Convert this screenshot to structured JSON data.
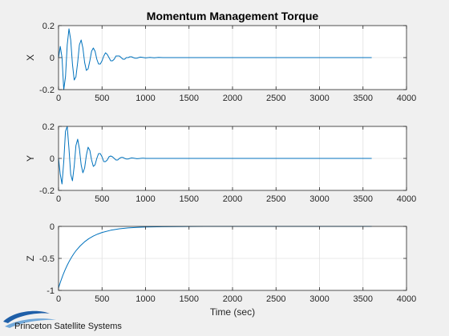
{
  "title": "Momentum Management Torque",
  "xlabel": "Time (sec)",
  "logo_text": "Princeton Satellite Systems",
  "colors": {
    "line": "#0072bd",
    "grid": "#e1e1e1",
    "axes_bg": "#ffffff",
    "figure_bg": "#f0f0f0"
  },
  "chart_data": [
    {
      "type": "line",
      "ylabel": "X",
      "xlim": [
        0,
        4000
      ],
      "ylim": [
        -0.2,
        0.2
      ],
      "xticks": [
        0,
        500,
        1000,
        1500,
        2000,
        2500,
        3000,
        3500,
        4000
      ],
      "yticks": [
        -0.2,
        0,
        0.2
      ],
      "ytick_labels": [
        "-0.2",
        "0",
        "0.2"
      ],
      "grid": true,
      "series": [
        {
          "x": [
            0,
            20,
            40,
            60,
            80,
            100,
            120,
            140,
            160,
            180,
            200,
            220,
            240,
            260,
            280,
            300,
            320,
            340,
            360,
            380,
            400,
            420,
            440,
            460,
            480,
            500,
            520,
            540,
            560,
            580,
            600,
            620,
            640,
            660,
            680,
            700,
            720,
            740,
            760,
            780,
            800,
            820,
            840,
            860,
            880,
            900,
            920,
            940,
            960,
            980,
            1000,
            1050,
            1100,
            1150,
            1200,
            1250,
            1300,
            1400,
            1600,
            2000,
            2500,
            3000,
            3600
          ],
          "y": [
            0.0,
            0.07,
            0.0,
            -0.2,
            -0.12,
            0.08,
            0.18,
            0.11,
            -0.04,
            -0.14,
            -0.12,
            -0.03,
            0.08,
            0.11,
            0.06,
            -0.03,
            -0.08,
            -0.07,
            -0.02,
            0.04,
            0.06,
            0.04,
            -0.01,
            -0.04,
            -0.04,
            -0.02,
            0.01,
            0.03,
            0.02,
            0.0,
            -0.02,
            -0.02,
            -0.01,
            0.01,
            0.01,
            0.01,
            0.0,
            -0.01,
            -0.01,
            0.0,
            0.0,
            0.005,
            0.005,
            0.0,
            -0.004,
            -0.004,
            0.0,
            0.003,
            0.002,
            0.0,
            -0.002,
            0.001,
            -0.001,
            0.001,
            0.0,
            0.0,
            0.0,
            0.0,
            0.0,
            0.0,
            0.0,
            0.0,
            0.0
          ]
        }
      ]
    },
    {
      "type": "line",
      "ylabel": "Y",
      "xlim": [
        0,
        4000
      ],
      "ylim": [
        -0.2,
        0.2
      ],
      "xticks": [
        0,
        500,
        1000,
        1500,
        2000,
        2500,
        3000,
        3500,
        4000
      ],
      "yticks": [
        -0.2,
        0,
        0.2
      ],
      "ytick_labels": [
        "-0.2",
        "0",
        "0.2"
      ],
      "grid": true,
      "series": [
        {
          "x": [
            0,
            20,
            40,
            60,
            80,
            100,
            120,
            140,
            160,
            180,
            200,
            220,
            240,
            260,
            280,
            300,
            320,
            340,
            360,
            380,
            400,
            420,
            440,
            460,
            480,
            500,
            520,
            540,
            560,
            580,
            600,
            620,
            640,
            660,
            680,
            700,
            720,
            740,
            760,
            780,
            800,
            820,
            840,
            860,
            880,
            900,
            920,
            940,
            960,
            980,
            1000,
            1050,
            1100,
            1150,
            1200,
            1250,
            1300,
            1400,
            1600,
            2000,
            2500,
            3000,
            3600
          ],
          "y": [
            0.0,
            -0.1,
            -0.16,
            -0.02,
            0.17,
            0.2,
            0.06,
            -0.1,
            -0.14,
            -0.05,
            0.08,
            0.12,
            0.06,
            -0.04,
            -0.09,
            -0.06,
            0.02,
            0.07,
            0.05,
            -0.01,
            -0.05,
            -0.04,
            0.0,
            0.03,
            0.03,
            0.01,
            -0.02,
            -0.02,
            -0.01,
            0.01,
            0.015,
            0.01,
            0.0,
            -0.01,
            -0.01,
            0.0,
            0.006,
            0.006,
            0.0,
            -0.004,
            -0.004,
            0.0,
            0.003,
            0.002,
            0.0,
            -0.002,
            -0.001,
            0.0,
            0.001,
            0.001,
            0.0,
            0.0,
            0.0,
            0.0,
            0.0,
            0.0,
            0.0,
            0.0,
            0.0,
            0.0,
            0.0,
            0.0,
            0.0
          ]
        }
      ]
    },
    {
      "type": "line",
      "ylabel": "Z",
      "xlabel": "Time (sec)",
      "xlim": [
        0,
        4000
      ],
      "ylim": [
        -1,
        0
      ],
      "xticks": [
        0,
        500,
        1000,
        1500,
        2000,
        2500,
        3000,
        3500,
        4000
      ],
      "yticks": [
        -1,
        -0.5,
        0
      ],
      "ytick_labels": [
        "-1",
        "-0.5",
        "0"
      ],
      "grid": true,
      "series": [
        {
          "x": [
            0,
            25,
            50,
            75,
            100,
            125,
            150,
            175,
            200,
            250,
            300,
            350,
            400,
            450,
            500,
            600,
            700,
            800,
            900,
            1000,
            1200,
            1500,
            2000,
            3000,
            3600
          ],
          "y": [
            -0.96,
            -0.857,
            -0.763,
            -0.68,
            -0.606,
            -0.54,
            -0.481,
            -0.428,
            -0.381,
            -0.303,
            -0.24,
            -0.19,
            -0.151,
            -0.12,
            -0.095,
            -0.06,
            -0.038,
            -0.024,
            -0.015,
            -0.009,
            -0.004,
            -0.001,
            0.0,
            0.0,
            0.0
          ]
        }
      ]
    }
  ]
}
